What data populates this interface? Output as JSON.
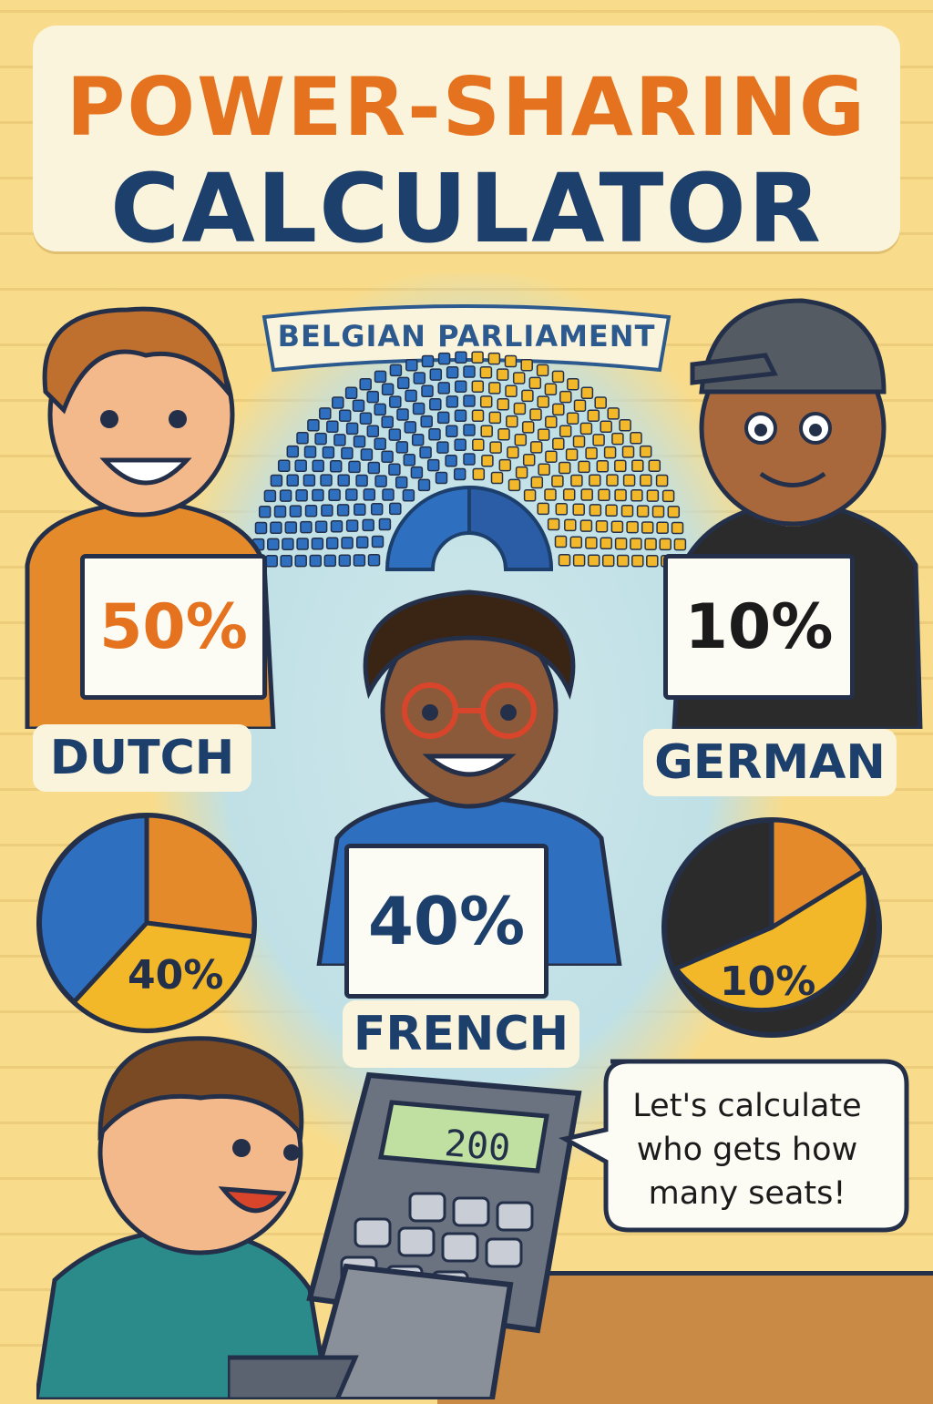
{
  "title": {
    "line1": "POWER-SHARING",
    "line2": "CALCULATOR"
  },
  "parliament": {
    "banner": "BELGIAN PARLIAMENT",
    "colors": {
      "blue": "#2f6fbf",
      "yellow": "#f2b82a"
    }
  },
  "groups": [
    {
      "name": "DUTCH",
      "sign": "50%",
      "sign_color": "#e4721f",
      "shirt": "#e58a2a"
    },
    {
      "name": "FRENCH",
      "sign": "40%",
      "sign_color": "#1d3f6b",
      "shirt": "#2f6fbf"
    },
    {
      "name": "GERMAN",
      "sign": "10%",
      "sign_color": "#1b1b1b",
      "shirt": "#2b2b2b"
    }
  ],
  "pies": [
    {
      "label": "40%",
      "highlight": "French share"
    },
    {
      "label": "10%",
      "highlight": "German share"
    }
  ],
  "calculator": {
    "display": "200"
  },
  "speech_bubble": {
    "text": "Let's calculate who gets how many seats!"
  },
  "icons": [
    "parliament-hemicycle-icon",
    "pie-chart-icon",
    "calculator-icon",
    "laptop-icon",
    "speech-bubble-icon"
  ]
}
